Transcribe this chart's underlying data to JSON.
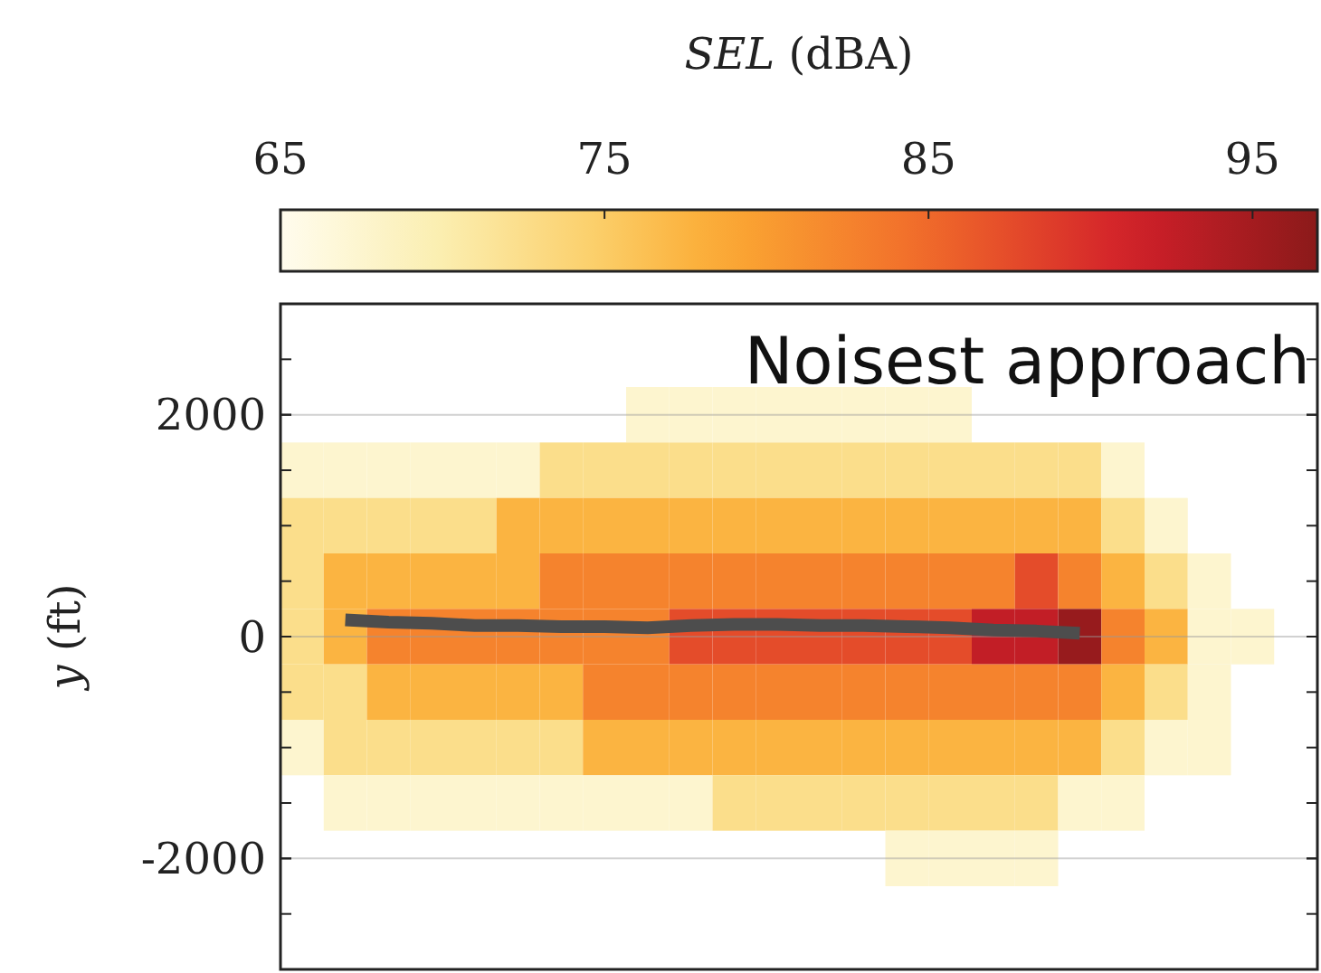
{
  "chart_data": [
    {
      "type": "heatmap",
      "clabel": "SEL (dBA)",
      "clim": [
        65,
        97
      ],
      "cticks": [
        65,
        75,
        85,
        95
      ],
      "categories": [
        null,
        null,
        null,
        null,
        null,
        null,
        null,
        null,
        null,
        null,
        null,
        null,
        null,
        null,
        null,
        null,
        null,
        null,
        null,
        null,
        null,
        null,
        null,
        null
      ],
      "y_categories": [
        "2000",
        null,
        null,
        null,
        "0",
        null,
        null,
        null,
        "-2000"
      ],
      "ylabel": "y (ft)",
      "grid": "y",
      "annotations": [
        "Noisest approach"
      ],
      "cells": [
        [
          null,
          null,
          null,
          null,
          null,
          null,
          null,
          null,
          67.5,
          67.5,
          67.5,
          67.5,
          67.5,
          67.5,
          67.5,
          67.5,
          null,
          null,
          null,
          null,
          null,
          null,
          null,
          null
        ],
        [
          67.5,
          67.5,
          67.5,
          67.5,
          67.5,
          67.5,
          72.5,
          72.5,
          72.5,
          72.5,
          72.5,
          72.5,
          72.5,
          72.5,
          72.5,
          72.5,
          72.5,
          72.5,
          72.5,
          67.5,
          null,
          null,
          null,
          null
        ],
        [
          72.5,
          72.5,
          72.5,
          72.5,
          72.5,
          77.5,
          77.5,
          77.5,
          77.5,
          77.5,
          77.5,
          77.5,
          77.5,
          77.5,
          77.5,
          77.5,
          77.5,
          77.5,
          77.5,
          72.5,
          67.5,
          null,
          null,
          null
        ],
        [
          72.5,
          77.5,
          77.5,
          77.5,
          77.5,
          77.5,
          82.5,
          82.5,
          82.5,
          82.5,
          82.5,
          82.5,
          82.5,
          82.5,
          82.5,
          82.5,
          82.5,
          87.5,
          82.5,
          77.5,
          72.5,
          67.5,
          null,
          null
        ],
        [
          72.5,
          77.5,
          82.5,
          82.5,
          82.5,
          82.5,
          82.5,
          82.5,
          82.5,
          87.5,
          87.5,
          87.5,
          87.5,
          87.5,
          87.5,
          87.5,
          92.5,
          92.5,
          96,
          82.5,
          77.5,
          67.5,
          67.5,
          null
        ],
        [
          72.5,
          72.5,
          77.5,
          77.5,
          77.5,
          77.5,
          77.5,
          82.5,
          82.5,
          82.5,
          82.5,
          82.5,
          82.5,
          82.5,
          82.5,
          82.5,
          82.5,
          82.5,
          82.5,
          77.5,
          72.5,
          67.5,
          null,
          null
        ],
        [
          67.5,
          72.5,
          72.5,
          72.5,
          72.5,
          72.5,
          72.5,
          77.5,
          77.5,
          77.5,
          77.5,
          77.5,
          77.5,
          77.5,
          77.5,
          77.5,
          77.5,
          77.5,
          77.5,
          72.5,
          67.5,
          67.5,
          null,
          null
        ],
        [
          null,
          67.5,
          67.5,
          67.5,
          67.5,
          67.5,
          67.5,
          67.5,
          67.5,
          67.5,
          72.5,
          72.5,
          72.5,
          72.5,
          72.5,
          72.5,
          72.5,
          72.5,
          67.5,
          67.5,
          null,
          null,
          null,
          null
        ],
        [
          null,
          null,
          null,
          null,
          null,
          null,
          null,
          null,
          null,
          null,
          null,
          null,
          null,
          null,
          67.5,
          67.5,
          67.5,
          67.5,
          null,
          null,
          null,
          null,
          null,
          null
        ]
      ]
    },
    {
      "type": "line",
      "tick_labels": false,
      "ylim": [
        -3000,
        3000
      ],
      "yticks": [
        -2000,
        0,
        2000
      ],
      "categories": [
        null,
        null,
        null,
        null,
        null,
        null,
        null,
        null,
        null,
        null,
        null,
        null,
        null,
        null,
        null,
        null,
        null,
        null,
        null,
        null,
        null,
        null,
        null,
        null
      ],
      "series": [
        {
          "color": "#4d4d4d",
          "values": [
            null,
            150,
            130,
            120,
            100,
            100,
            90,
            90,
            80,
            100,
            110,
            110,
            100,
            100,
            90,
            80,
            60,
            50,
            30,
            null,
            null,
            null,
            null,
            null
          ]
        }
      ]
    }
  ]
}
